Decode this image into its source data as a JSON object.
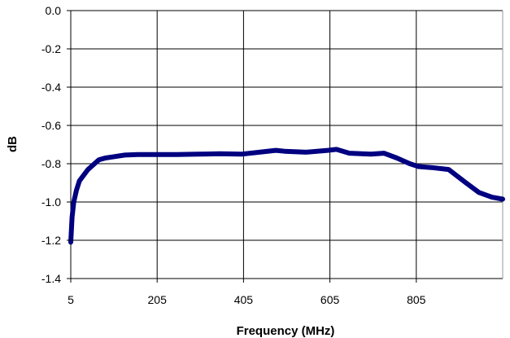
{
  "chart_data": {
    "type": "line",
    "title": "",
    "xlabel": "Frequency (MHz)",
    "ylabel": "dB",
    "xlim": [
      5,
      1005
    ],
    "ylim": [
      -1.4,
      0.0
    ],
    "x_ticks": [
      5,
      205,
      405,
      605,
      805
    ],
    "x_tick_labels": [
      "5",
      "205",
      "405",
      "605",
      "805"
    ],
    "y_ticks": [
      0.0,
      -0.2,
      -0.4,
      -0.6,
      -0.8,
      -1.0,
      -1.2,
      -1.4
    ],
    "y_tick_labels": [
      "0.0",
      "-0.2",
      "-0.4",
      "-0.6",
      "-0.8",
      "-1.0",
      "-1.2",
      "-1.4"
    ],
    "grid": true,
    "legend": "none",
    "line_color": "#000080",
    "series": [
      {
        "x": [
          5,
          8,
          12,
          18,
          25,
          35,
          45,
          55,
          70,
          85,
          100,
          130,
          160,
          200,
          250,
          300,
          350,
          400,
          450,
          480,
          500,
          550,
          600,
          620,
          650,
          700,
          730,
          760,
          790,
          810,
          840,
          880,
          920,
          950,
          980,
          1005
        ],
        "y": [
          -1.21,
          -1.08,
          -1.0,
          -0.94,
          -0.89,
          -0.86,
          -0.83,
          -0.81,
          -0.78,
          -0.77,
          -0.765,
          -0.755,
          -0.752,
          -0.752,
          -0.752,
          -0.75,
          -0.748,
          -0.75,
          -0.738,
          -0.73,
          -0.735,
          -0.74,
          -0.73,
          -0.725,
          -0.745,
          -0.75,
          -0.745,
          -0.77,
          -0.8,
          -0.815,
          -0.82,
          -0.83,
          -0.9,
          -0.95,
          -0.975,
          -0.985
        ]
      }
    ]
  }
}
